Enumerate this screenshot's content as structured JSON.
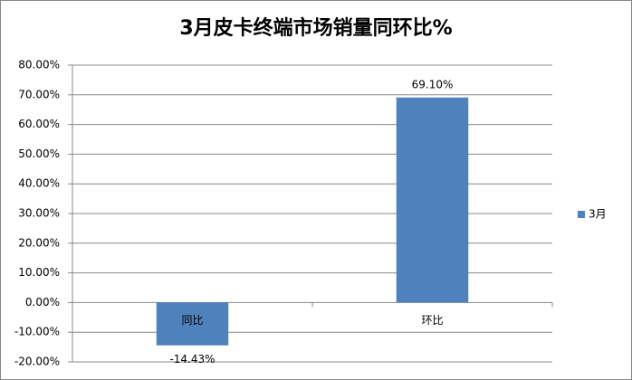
{
  "chart_data": {
    "type": "bar",
    "title": "3月皮卡终端市场销量同环比%",
    "categories": [
      "同比",
      "环比"
    ],
    "series": [
      {
        "name": "3月",
        "color": "#4f81bd",
        "values": [
          -14.43,
          69.1
        ],
        "value_labels": [
          "-14.43%",
          "69.10%"
        ]
      }
    ],
    "ylim": [
      -20,
      80
    ],
    "yticks": [
      {
        "value": -20,
        "label": "-20.00%"
      },
      {
        "value": -10,
        "label": "-10.00%"
      },
      {
        "value": 0,
        "label": "0.00%"
      },
      {
        "value": 10,
        "label": "10.00%"
      },
      {
        "value": 20,
        "label": "20.00%"
      },
      {
        "value": 30,
        "label": "30.00%"
      },
      {
        "value": 40,
        "label": "40.00%"
      },
      {
        "value": 50,
        "label": "50.00%"
      },
      {
        "value": 60,
        "label": "60.00%"
      },
      {
        "value": 70,
        "label": "70.00%"
      },
      {
        "value": 80,
        "label": "80.00%"
      }
    ],
    "grid": true,
    "legend": "right"
  }
}
